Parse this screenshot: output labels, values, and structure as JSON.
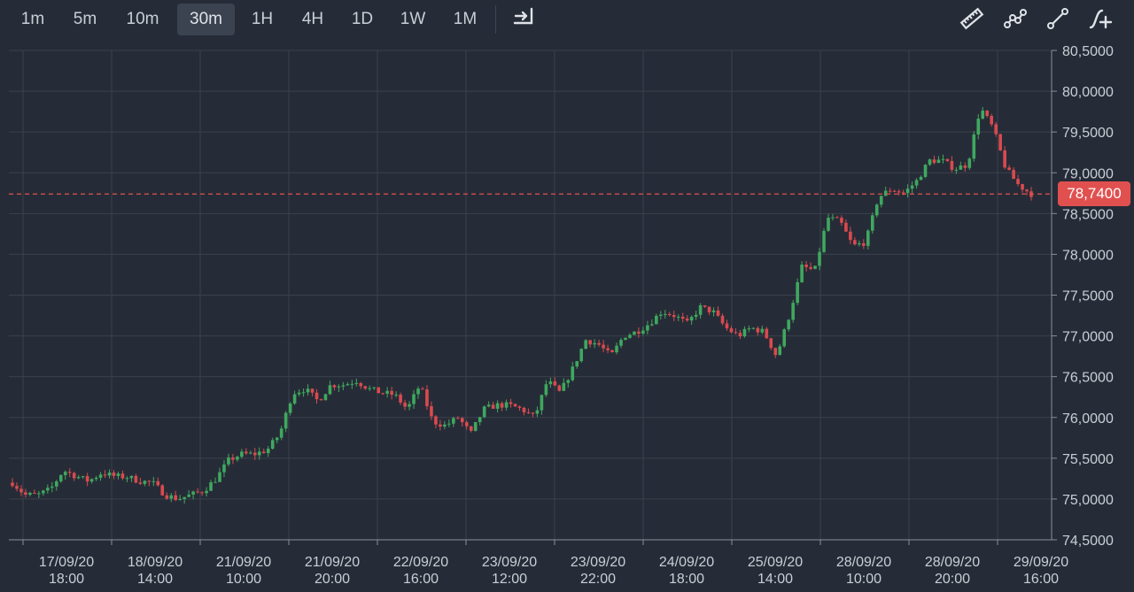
{
  "toolbar": {
    "timeframes": [
      "1m",
      "5m",
      "10m",
      "30m",
      "1H",
      "4H",
      "1D",
      "1W",
      "1M"
    ],
    "active": "30m",
    "icons": [
      "go-to-latest-icon",
      "ruler-icon",
      "multi-point-line-icon",
      "trend-line-icon",
      "add-indicator-icon"
    ]
  },
  "colors": {
    "background": "#262c37",
    "up": "#3fa85f",
    "down": "#d94a4f",
    "grid": "#3a414d",
    "price_line": "#e0504f"
  },
  "chart_data": {
    "type": "candlestick",
    "y_ticks": [
      "80,5000",
      "80,0000",
      "79,5000",
      "79,0000",
      "78,5000",
      "78,0000",
      "77,5000",
      "77,0000",
      "76,5000",
      "76,0000",
      "75,5000",
      "75,0000",
      "74,5000"
    ],
    "ylim": [
      74.5,
      80.5
    ],
    "x_ticks": [
      {
        "date": "17/09/20",
        "time": "18:00"
      },
      {
        "date": "18/09/20",
        "time": "14:00"
      },
      {
        "date": "21/09/20",
        "time": "10:00"
      },
      {
        "date": "21/09/20",
        "time": "20:00"
      },
      {
        "date": "22/09/20",
        "time": "16:00"
      },
      {
        "date": "23/09/20",
        "time": "12:00"
      },
      {
        "date": "23/09/20",
        "time": "22:00"
      },
      {
        "date": "24/09/20",
        "time": "18:00"
      },
      {
        "date": "25/09/20",
        "time": "14:00"
      },
      {
        "date": "28/09/20",
        "time": "10:00"
      },
      {
        "date": "28/09/20",
        "time": "20:00"
      },
      {
        "date": "29/09/20",
        "time": "16:00"
      }
    ],
    "close_path": [
      75.2,
      75.05,
      75.05,
      75.12,
      75.35,
      75.28,
      75.22,
      75.32,
      75.28,
      75.27,
      75.22,
      75.2,
      75.05,
      75.0,
      75.05,
      75.1,
      75.25,
      75.48,
      75.55,
      75.55,
      75.6,
      75.8,
      76.3,
      76.35,
      76.2,
      76.4,
      76.4,
      76.45,
      76.35,
      76.3,
      76.28,
      76.1,
      76.4,
      75.95,
      75.9,
      76.0,
      75.8,
      76.1,
      76.15,
      76.15,
      76.1,
      76.0,
      76.45,
      76.3,
      76.6,
      76.95,
      76.9,
      76.75,
      77.0,
      77.05,
      77.15,
      77.3,
      77.25,
      77.15,
      77.35,
      77.3,
      77.1,
      77.0,
      77.1,
      77.05,
      76.75,
      77.25,
      77.85,
      77.8,
      78.45,
      78.4,
      78.1,
      78.15,
      78.7,
      78.8,
      78.75,
      78.9,
      79.15,
      79.15,
      79.05,
      79.1,
      79.8,
      79.55,
      79.05,
      78.85,
      78.74
    ],
    "last_price": "78,7400"
  }
}
